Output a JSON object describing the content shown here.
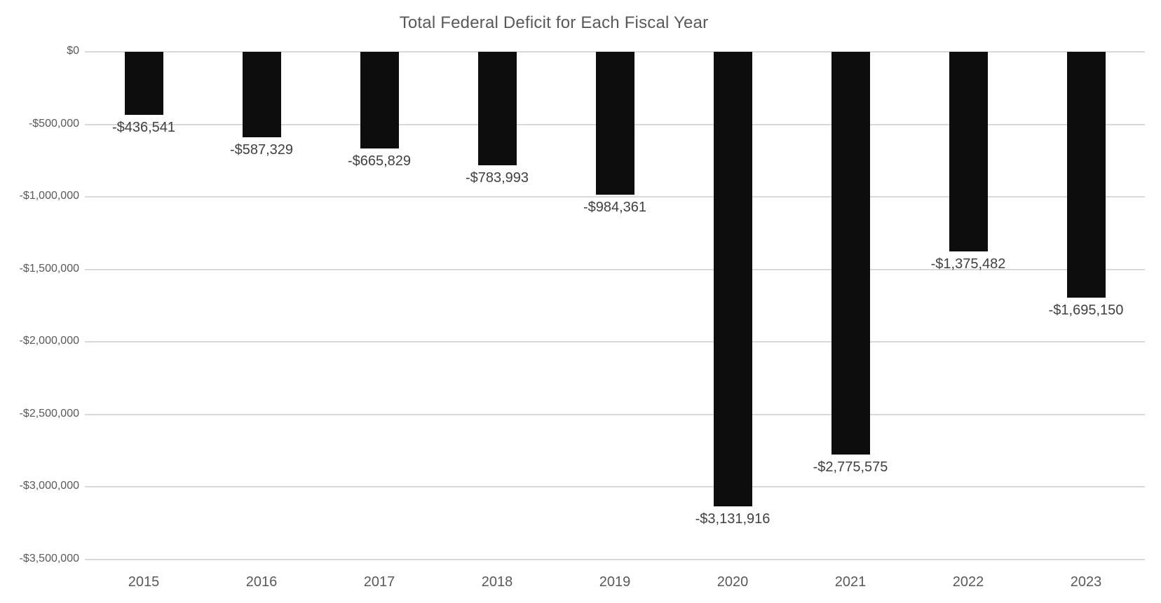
{
  "chart_data": {
    "type": "bar",
    "title": "Total Federal Deficit for Each Fiscal Year",
    "xlabel": "",
    "ylabel": "",
    "categories": [
      "2015",
      "2016",
      "2017",
      "2018",
      "2019",
      "2020",
      "2021",
      "2022",
      "2023"
    ],
    "values": [
      -436541,
      -587329,
      -665829,
      -783993,
      -984361,
      -3131916,
      -2775575,
      -1375482,
      -1695150
    ],
    "data_labels": [
      "-$436,541",
      "-$587,329",
      "-$665,829",
      "-$783,993",
      "-$984,361",
      "-$3,131,916",
      "-$2,775,575",
      "-$1,375,482",
      "-$1,695,150"
    ],
    "y_tick_labels": [
      "$0",
      "-$500,000",
      "-$1,000,000",
      "-$1,500,000",
      "-$2,000,000",
      "-$2,500,000",
      "-$3,000,000",
      "-$3,500,000"
    ],
    "y_tick_values": [
      0,
      -500000,
      -1000000,
      -1500000,
      -2000000,
      -2500000,
      -3000000,
      -3500000
    ],
    "ylim": [
      -3500000,
      0
    ],
    "grid": true,
    "legend": "none",
    "data_label_position": "outside-end-below",
    "colors": {
      "bar_fill": "#0d0d0e",
      "gridline": "#d9d9d9",
      "title_text": "#595959",
      "axis_text": "#595959",
      "data_label_text": "#404040",
      "background": "#ffffff"
    }
  }
}
